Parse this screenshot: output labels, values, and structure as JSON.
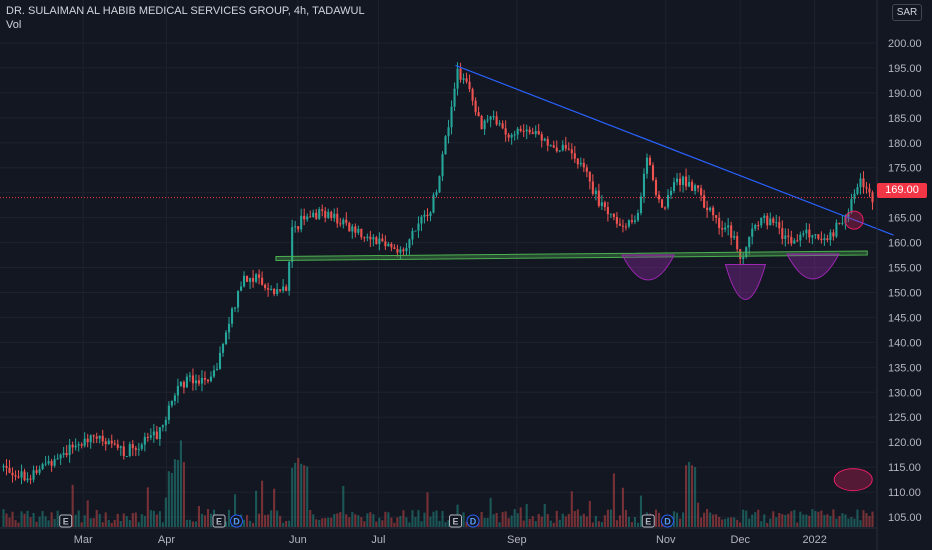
{
  "header": {
    "symbol": "DR. SULAIMAN AL HABIB MEDICAL SERVICES GROUP, 4h, TADAWUL",
    "volume_label": "Vol",
    "currency": "SAR"
  },
  "colors": {
    "background": "#131722",
    "up": "#26a69a",
    "down": "#ef5350",
    "trendline": "#2962ff",
    "support": "#4caf50",
    "pattern": "#9c27b0",
    "highlight": "#e91e63",
    "current_price_line": "#f23645"
  },
  "chart_data": {
    "type": "candlestick",
    "title": "DR. SULAIMAN AL HABIB MEDICAL SERVICES GROUP, 4h, TADAWUL",
    "ylim": [
      103,
      203
    ],
    "y_ticks": [
      105,
      110,
      115,
      120,
      125,
      130,
      135,
      140,
      145,
      150,
      155,
      160,
      165,
      170,
      175,
      180,
      185,
      190,
      195,
      200
    ],
    "y_tick_labels": [
      "105.00",
      "110.00",
      "115.00",
      "120.00",
      "125.00",
      "130.00",
      "135.00",
      "140.00",
      "145.00",
      "150.00",
      "155.00",
      "160.00",
      "165.00",
      "170.00",
      "175.00",
      "180.00",
      "185.00",
      "190.00",
      "195.00",
      "200.00"
    ],
    "x_ticks": [
      {
        "label": "Mar",
        "pos": 0.095
      },
      {
        "label": "Apr",
        "pos": 0.19
      },
      {
        "label": "Jun",
        "pos": 0.34
      },
      {
        "label": "Jul",
        "pos": 0.432
      },
      {
        "label": "Sep",
        "pos": 0.59
      },
      {
        "label": "Nov",
        "pos": 0.76
      },
      {
        "label": "Dec",
        "pos": 0.845
      },
      {
        "label": "2022",
        "pos": 0.93
      }
    ],
    "current_price": 169.0,
    "current_price_label": "169.00",
    "key_points": [
      {
        "t": 0.0,
        "p": 115
      },
      {
        "t": 0.03,
        "p": 113
      },
      {
        "t": 0.06,
        "p": 117
      },
      {
        "t": 0.1,
        "p": 121
      },
      {
        "t": 0.14,
        "p": 118
      },
      {
        "t": 0.18,
        "p": 122
      },
      {
        "t": 0.2,
        "p": 131
      },
      {
        "t": 0.215,
        "p": 133
      },
      {
        "t": 0.24,
        "p": 132
      },
      {
        "t": 0.26,
        "p": 144
      },
      {
        "t": 0.275,
        "p": 153
      },
      {
        "t": 0.29,
        "p": 153
      },
      {
        "t": 0.31,
        "p": 150
      },
      {
        "t": 0.325,
        "p": 151
      },
      {
        "t": 0.332,
        "p": 162
      },
      {
        "t": 0.345,
        "p": 165
      },
      {
        "t": 0.37,
        "p": 166
      },
      {
        "t": 0.39,
        "p": 164
      },
      {
        "t": 0.41,
        "p": 162
      },
      {
        "t": 0.44,
        "p": 160
      },
      {
        "t": 0.46,
        "p": 158
      },
      {
        "t": 0.475,
        "p": 163
      },
      {
        "t": 0.49,
        "p": 166
      },
      {
        "t": 0.5,
        "p": 172
      },
      {
        "t": 0.51,
        "p": 182
      },
      {
        "t": 0.522,
        "p": 194
      },
      {
        "t": 0.535,
        "p": 191
      },
      {
        "t": 0.55,
        "p": 183
      },
      {
        "t": 0.565,
        "p": 185
      },
      {
        "t": 0.58,
        "p": 181
      },
      {
        "t": 0.6,
        "p": 183
      },
      {
        "t": 0.625,
        "p": 180
      },
      {
        "t": 0.65,
        "p": 178
      },
      {
        "t": 0.67,
        "p": 174
      },
      {
        "t": 0.685,
        "p": 168
      },
      {
        "t": 0.7,
        "p": 166
      },
      {
        "t": 0.715,
        "p": 163
      },
      {
        "t": 0.73,
        "p": 165
      },
      {
        "t": 0.74,
        "p": 178
      },
      {
        "t": 0.75,
        "p": 170
      },
      {
        "t": 0.76,
        "p": 167
      },
      {
        "t": 0.775,
        "p": 173
      },
      {
        "t": 0.795,
        "p": 171
      },
      {
        "t": 0.81,
        "p": 167
      },
      {
        "t": 0.828,
        "p": 163
      },
      {
        "t": 0.838,
        "p": 162
      },
      {
        "t": 0.848,
        "p": 156
      },
      {
        "t": 0.86,
        "p": 162
      },
      {
        "t": 0.875,
        "p": 165
      },
      {
        "t": 0.89,
        "p": 163
      },
      {
        "t": 0.905,
        "p": 160
      },
      {
        "t": 0.925,
        "p": 162
      },
      {
        "t": 0.94,
        "p": 161
      },
      {
        "t": 0.955,
        "p": 162
      },
      {
        "t": 0.97,
        "p": 166
      },
      {
        "t": 0.985,
        "p": 172
      },
      {
        "t": 1.0,
        "p": 169
      }
    ],
    "trendline": {
      "t1": 0.52,
      "p1": 195.5,
      "t2": 1.02,
      "p2": 161.5
    },
    "support_line": {
      "t1": 0.315,
      "p1": 156.8,
      "t2": 0.99,
      "p2": 157.9
    },
    "patterns": [
      {
        "type": "shoulder",
        "t": 0.74,
        "p": 157.5,
        "depth": 5
      },
      {
        "type": "head",
        "t": 0.851,
        "p": 155.6,
        "depth": 7
      },
      {
        "type": "shoulder",
        "t": 0.928,
        "p": 157.7,
        "depth": 5
      }
    ],
    "highlight_markers": [
      {
        "t": 0.975,
        "p": 164.5
      },
      {
        "t": 0.974,
        "p": 112.5
      }
    ],
    "events": [
      {
        "type": "earnings",
        "label": "E",
        "pos": 0.075
      },
      {
        "type": "earnings",
        "label": "E",
        "pos": 0.25
      },
      {
        "type": "dividend",
        "label": "D",
        "pos": 0.27
      },
      {
        "type": "earnings",
        "label": "E",
        "pos": 0.52
      },
      {
        "type": "dividend",
        "label": "D",
        "pos": 0.54
      },
      {
        "type": "earnings",
        "label": "E",
        "pos": 0.74
      },
      {
        "type": "dividend",
        "label": "D",
        "pos": 0.762
      }
    ]
  }
}
